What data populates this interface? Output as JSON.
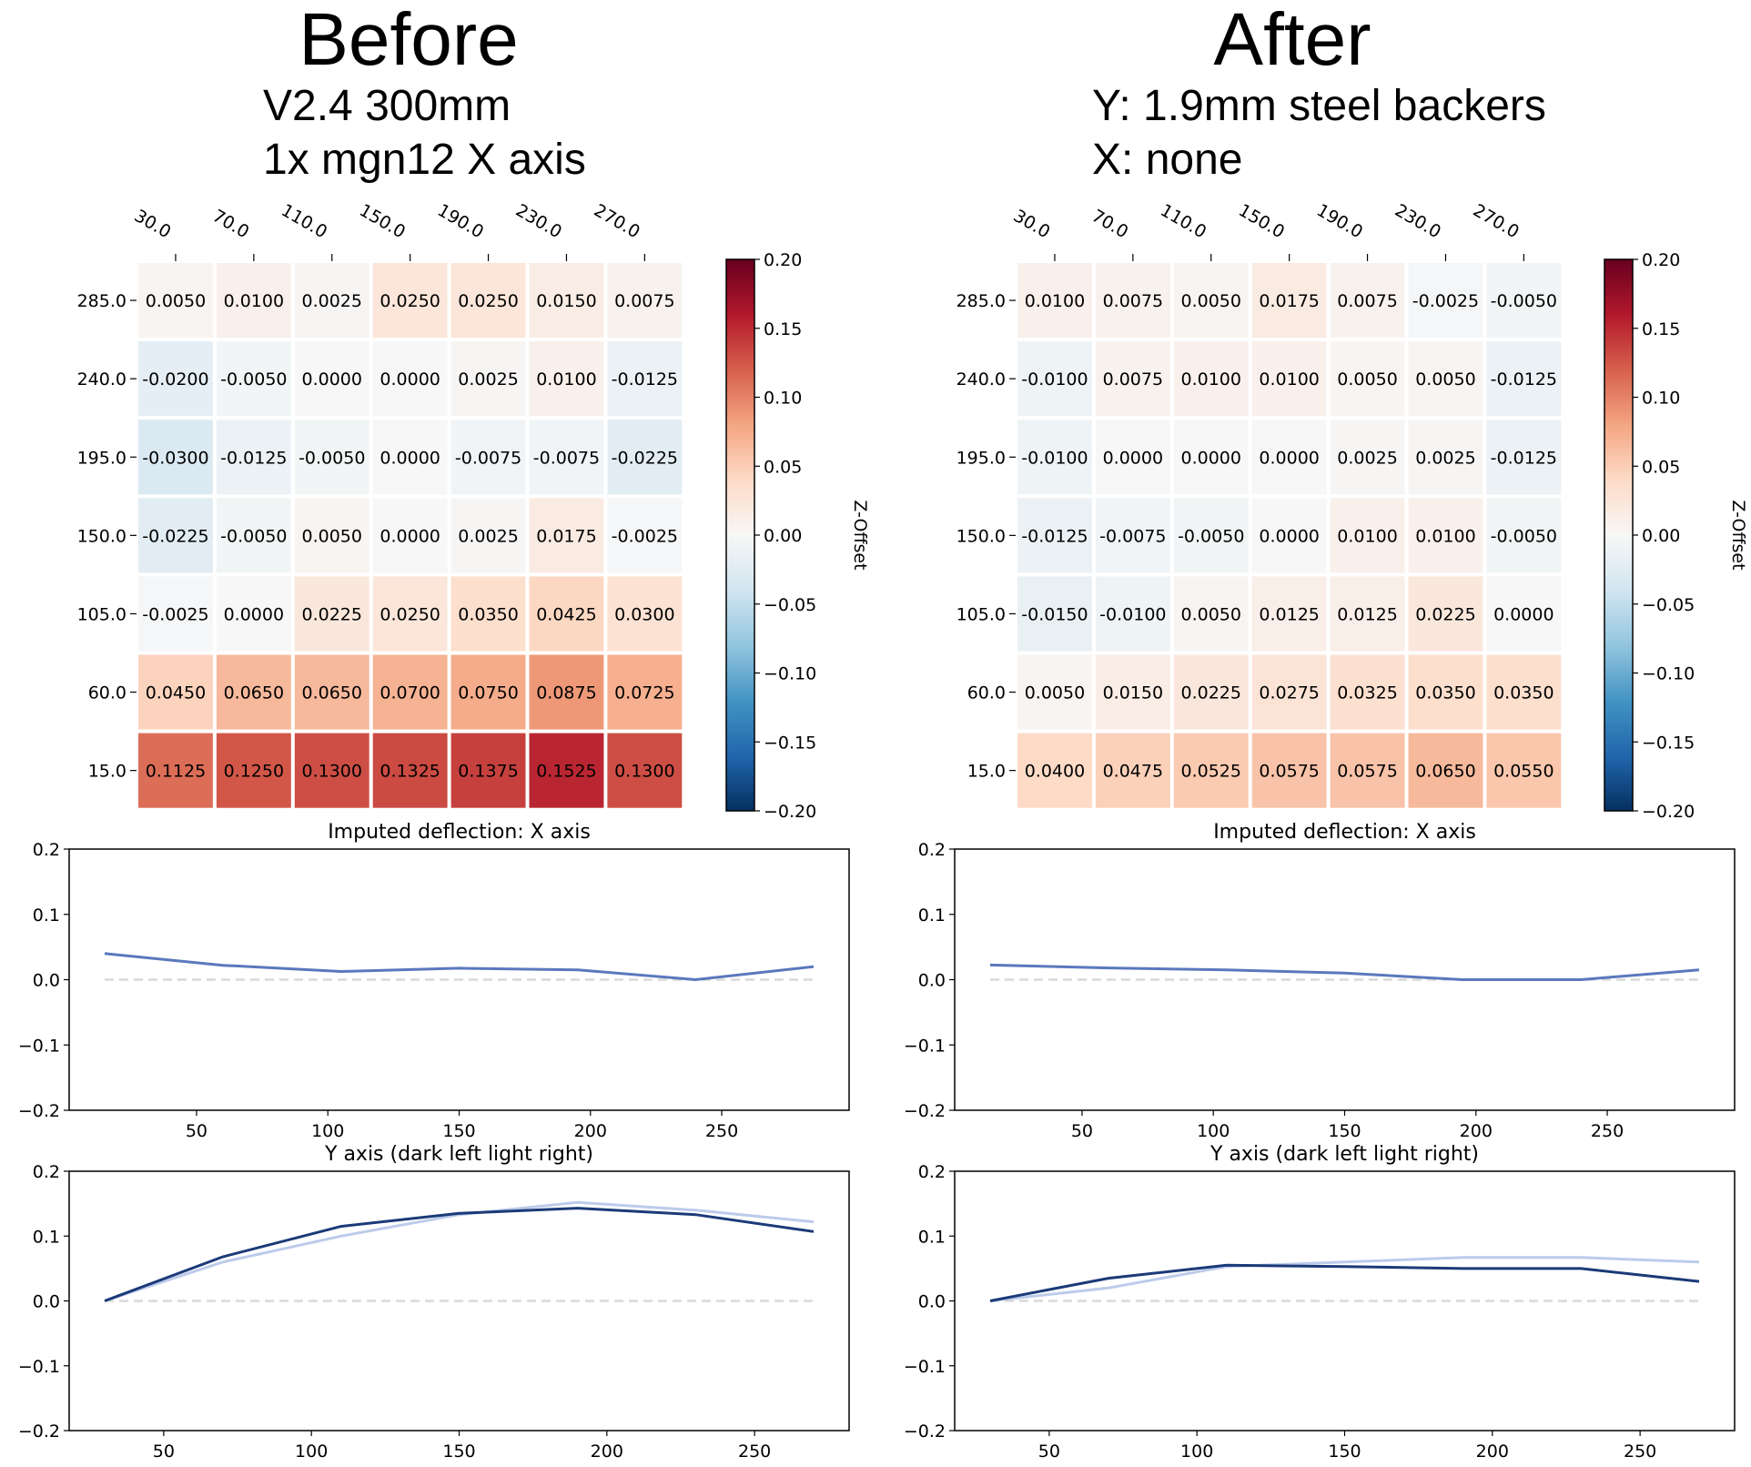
{
  "panels": [
    {
      "title": "Before",
      "subtitle_lines": [
        "V2.4 300mm",
        "1x mgn12 X axis"
      ]
    },
    {
      "title": "After",
      "subtitle_lines": [
        "Y: 1.9mm steel backers",
        "X: none"
      ]
    }
  ],
  "chart_data": [
    {
      "type": "heatmap",
      "panel": "Before",
      "x_categories": [
        "30.0",
        "70.0",
        "110.0",
        "150.0",
        "190.0",
        "230.0",
        "270.0"
      ],
      "y_categories": [
        "285.0",
        "240.0",
        "195.0",
        "150.0",
        "105.0",
        "60.0",
        "15.0"
      ],
      "values": [
        [
          0.005,
          0.01,
          0.0025,
          0.025,
          0.025,
          0.015,
          0.0075
        ],
        [
          -0.02,
          -0.005,
          0.0,
          0.0,
          0.0025,
          0.01,
          -0.0125
        ],
        [
          -0.03,
          -0.0125,
          -0.005,
          0.0,
          -0.0075,
          -0.0075,
          -0.0225
        ],
        [
          -0.0225,
          -0.005,
          0.005,
          0.0,
          0.0025,
          0.0175,
          -0.0025
        ],
        [
          -0.0025,
          0.0,
          0.0225,
          0.025,
          0.035,
          0.0425,
          0.03
        ],
        [
          0.045,
          0.065,
          0.065,
          0.07,
          0.075,
          0.0875,
          0.0725
        ],
        [
          0.1125,
          0.125,
          0.13,
          0.1325,
          0.1375,
          0.1525,
          0.13
        ]
      ],
      "white_text_cells": [
        [
          2,
          0
        ]
      ],
      "colormap": "RdBu_r",
      "colorbar": {
        "label": "Z-Offset",
        "range": [
          -0.2,
          0.2
        ],
        "ticks": [
          "0.20",
          "0.15",
          "0.10",
          "0.05",
          "0.00",
          "−0.05",
          "−0.10",
          "−0.15",
          "−0.20"
        ]
      }
    },
    {
      "type": "heatmap",
      "panel": "After",
      "x_categories": [
        "30.0",
        "70.0",
        "110.0",
        "150.0",
        "190.0",
        "230.0",
        "270.0"
      ],
      "y_categories": [
        "285.0",
        "240.0",
        "195.0",
        "150.0",
        "105.0",
        "60.0",
        "15.0"
      ],
      "values": [
        [
          0.01,
          0.0075,
          0.005,
          0.0175,
          0.0075,
          -0.0025,
          -0.005
        ],
        [
          -0.01,
          0.0075,
          0.01,
          0.01,
          0.005,
          0.005,
          -0.0125
        ],
        [
          -0.01,
          0.0,
          0.0,
          0.0,
          0.0025,
          0.0025,
          -0.0125
        ],
        [
          -0.0125,
          -0.0075,
          -0.005,
          0.0,
          0.01,
          0.01,
          -0.005
        ],
        [
          -0.015,
          -0.01,
          0.005,
          0.0125,
          0.0125,
          0.0225,
          0.0
        ],
        [
          0.005,
          0.015,
          0.0225,
          0.0275,
          0.0325,
          0.035,
          0.035
        ],
        [
          0.04,
          0.0475,
          0.0525,
          0.0575,
          0.0575,
          0.065,
          0.055
        ]
      ],
      "white_text_cells": [],
      "colormap": "RdBu_r",
      "colorbar": {
        "label": "Z-Offset",
        "range": [
          -0.2,
          0.2
        ],
        "ticks": [
          "0.20",
          "0.15",
          "0.10",
          "0.05",
          "0.00",
          "−0.05",
          "−0.10",
          "−0.15",
          "−0.20"
        ]
      }
    },
    {
      "type": "line",
      "panel": "Before",
      "title": "Imputed deflection: X axis",
      "x": [
        15,
        60,
        105,
        150,
        195,
        240,
        285
      ],
      "series": [
        {
          "values": [
            0.04,
            0.022,
            0.0125,
            0.0175,
            0.015,
            0.0,
            0.02
          ],
          "color": "#5a78bd"
        }
      ],
      "baseline": 0,
      "xlim": [
        1.5,
        298.5
      ],
      "ylim": [
        -0.2,
        0.2
      ],
      "xticks": [
        50,
        100,
        150,
        200,
        250
      ],
      "yticks": [
        "0.2",
        "0.1",
        "0.0",
        "−0.1",
        "−0.2"
      ]
    },
    {
      "type": "line",
      "panel": "After",
      "title": "Imputed deflection: X axis",
      "x": [
        15,
        60,
        105,
        150,
        195,
        240,
        285
      ],
      "series": [
        {
          "values": [
            0.0225,
            0.018,
            0.015,
            0.01,
            0.0,
            0.0,
            0.015
          ],
          "color": "#5a78bd"
        }
      ],
      "baseline": 0,
      "xlim": [
        1.5,
        298.5
      ],
      "ylim": [
        -0.2,
        0.2
      ],
      "xticks": [
        50,
        100,
        150,
        200,
        250
      ],
      "yticks": [
        "0.2",
        "0.1",
        "0.0",
        "−0.1",
        "−0.2"
      ]
    },
    {
      "type": "line",
      "panel": "Before",
      "title": "Y axis (dark left light right)",
      "x": [
        30,
        70,
        110,
        150,
        190,
        230,
        270
      ],
      "series": [
        {
          "values": [
            0.0,
            0.06,
            0.1,
            0.133,
            0.152,
            0.14,
            0.122
          ],
          "color": "#bccbea"
        },
        {
          "values": [
            0.0,
            0.068,
            0.115,
            0.135,
            0.143,
            0.133,
            0.107
          ],
          "color": "#1b3a78"
        }
      ],
      "baseline": 0,
      "xlim": [
        18,
        282
      ],
      "ylim": [
        -0.2,
        0.2
      ],
      "xticks": [
        50,
        100,
        150,
        200,
        250
      ],
      "yticks": [
        "0.2",
        "0.1",
        "0.0",
        "−0.1",
        "−0.2"
      ]
    },
    {
      "type": "line",
      "panel": "After",
      "title": "Y axis (dark left light right)",
      "x": [
        30,
        70,
        110,
        150,
        190,
        230,
        270
      ],
      "series": [
        {
          "values": [
            0.0,
            0.02,
            0.053,
            0.06,
            0.067,
            0.067,
            0.06
          ],
          "color": "#bccbea"
        },
        {
          "values": [
            0.0,
            0.035,
            0.055,
            0.053,
            0.05,
            0.05,
            0.03
          ],
          "color": "#1b3a78"
        }
      ],
      "baseline": 0,
      "xlim": [
        18,
        282
      ],
      "ylim": [
        -0.2,
        0.2
      ],
      "xticks": [
        50,
        100,
        150,
        200,
        250
      ],
      "yticks": [
        "0.2",
        "0.1",
        "0.0",
        "−0.1",
        "−0.2"
      ]
    }
  ]
}
